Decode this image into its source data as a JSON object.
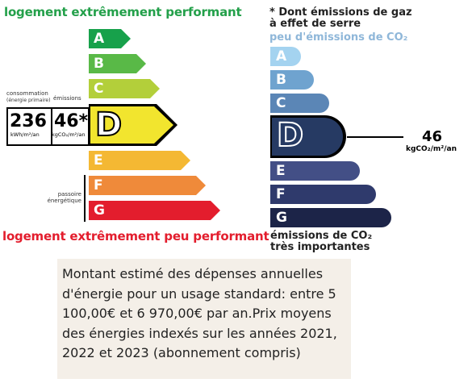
{
  "left_label": {
    "top_text": "logement extrêmement performant",
    "bottom_text": "logement extrêmement peu performant",
    "classes": [
      "A",
      "B",
      "C",
      "D",
      "E",
      "F",
      "G"
    ],
    "class_colors": [
      "#17a14b",
      "#59b947",
      "#b3cf3a",
      "#f2e52e",
      "#f4b833",
      "#ef8a3a",
      "#e31d2d"
    ],
    "current_class": "D",
    "consumption_label": "consommation",
    "consumption_sublabel": "(énergie primaire)",
    "emissions_label": "émissions",
    "consumption_value": "236",
    "consumption_unit": "kWh/m²/an",
    "emissions_value": "46*",
    "emissions_unit": "kgCO₂/m²/an",
    "passoire_label": "passoire énergétique"
  },
  "right_label": {
    "title_line1": "* Dont émissions de gaz",
    "title_line2": "à effet de serre",
    "top_text": "peu d'émissions de CO₂",
    "bottom_text_line1": "émissions de CO₂",
    "bottom_text_line2": "très importantes",
    "classes": [
      "A",
      "B",
      "C",
      "D",
      "E",
      "F",
      "G"
    ],
    "class_colors": [
      "#a4d3f0",
      "#6fa3cf",
      "#5b86b6",
      "#263a63",
      "#434f86",
      "#2f3a6c",
      "#1c2448"
    ],
    "current_class": "D",
    "value": "46",
    "unit": "kgCO₂/m²/an"
  },
  "description": "Montant estimé des dépenses annuelles d'énergie pour un usage standard: entre 5 100,00€ et 6 970,00€ par an.Prix moyens des énergies indexés sur les années 2021, 2022 et 2023 (abonnement compris)"
}
